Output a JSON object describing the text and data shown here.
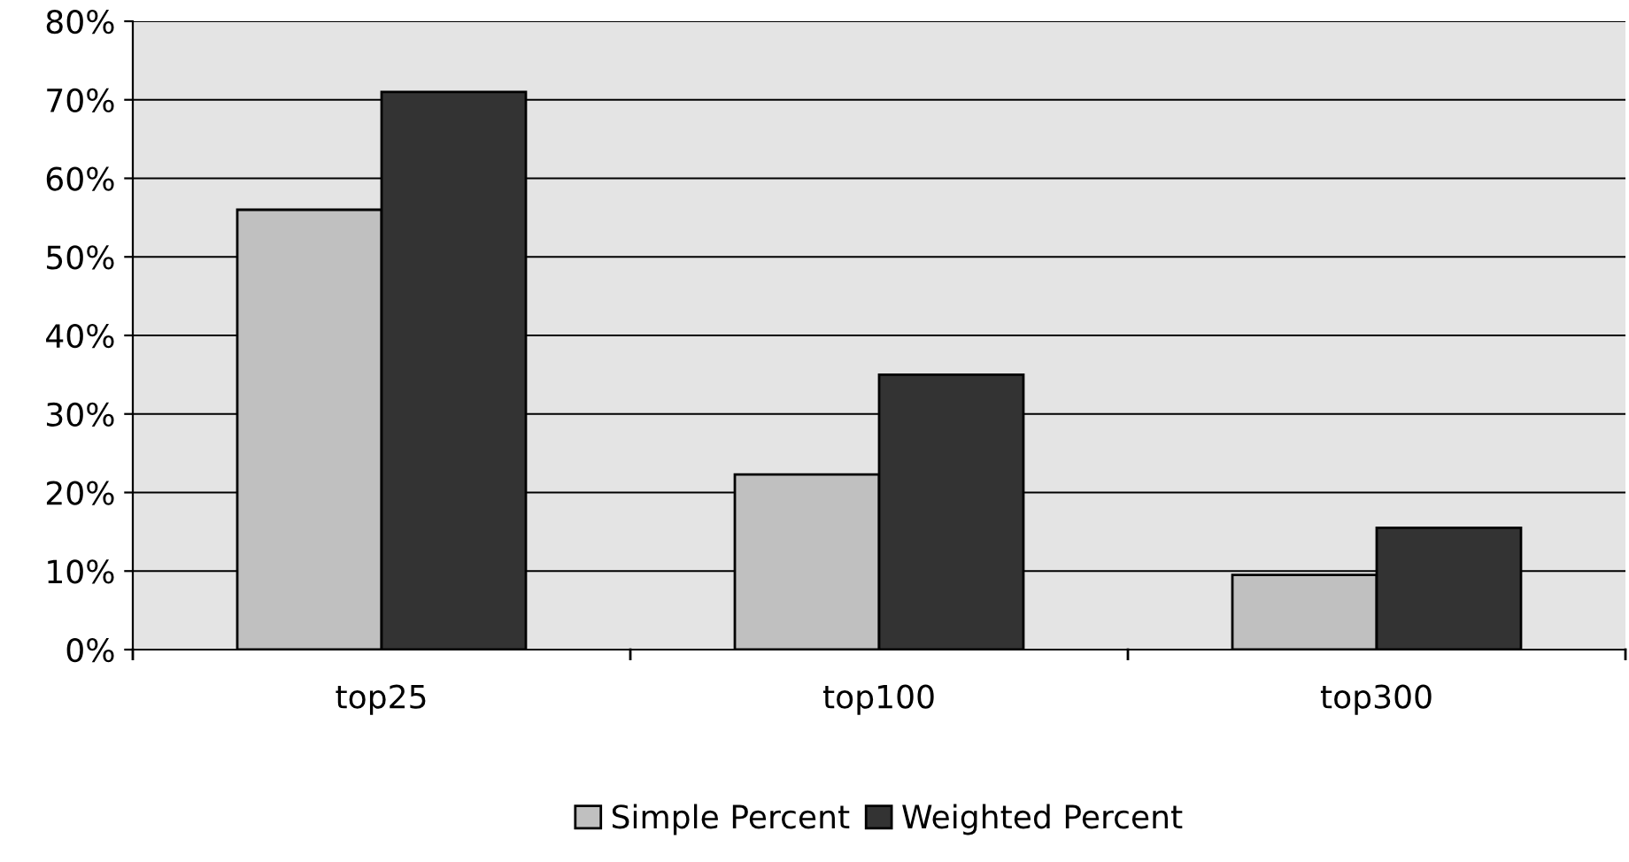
{
  "chart_data": {
    "type": "bar",
    "categories": [
      "top25",
      "top100",
      "top300"
    ],
    "series": [
      {
        "name": "Simple Percent",
        "color": "#c0c0c0",
        "values": [
          0.56,
          0.223,
          0.095
        ]
      },
      {
        "name": "Weighted Percent",
        "color": "#333333",
        "values": [
          0.71,
          0.35,
          0.155
        ]
      }
    ],
    "ylim": [
      0,
      0.8
    ],
    "yticks": [
      {
        "value": 0,
        "label": "0%"
      },
      {
        "value": 0.1,
        "label": "10%"
      },
      {
        "value": 0.2,
        "label": "20%"
      },
      {
        "value": 0.3,
        "label": "30%"
      },
      {
        "value": 0.4,
        "label": "40%"
      },
      {
        "value": 0.5,
        "label": "50%"
      },
      {
        "value": 0.6,
        "label": "60%"
      },
      {
        "value": 0.7,
        "label": "70%"
      },
      {
        "value": 0.8,
        "label": "80%"
      }
    ],
    "grid": "y",
    "legend": "bottom"
  }
}
